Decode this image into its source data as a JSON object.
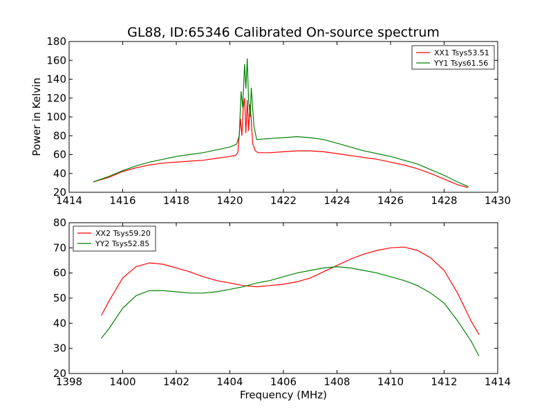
{
  "figure": {
    "title": "GL88, ID:65346 Calibrated On-source spectrum",
    "ylabel": "Power in Kelvin",
    "xlabel": "Frequency (MHz)"
  },
  "chart_data": [
    {
      "type": "line",
      "xlim": [
        1414,
        1430
      ],
      "ylim": [
        20,
        180
      ],
      "xticks": [
        "1414",
        "1416",
        "1418",
        "1420",
        "1422",
        "1424",
        "1426",
        "1428",
        "1430"
      ],
      "yticks": [
        "20",
        "40",
        "60",
        "80",
        "100",
        "120",
        "140",
        "160",
        "180"
      ],
      "ylabel": "Power in Kelvin",
      "legend_position": "top-right",
      "grid": false,
      "series": [
        {
          "name": "XX1 Tsys53.51",
          "color": "#ff0000",
          "points": [
            [
              1414.9,
              31
            ],
            [
              1415.5,
              36
            ],
            [
              1416,
              42
            ],
            [
              1416.5,
              46
            ],
            [
              1417,
              49
            ],
            [
              1417.5,
              51
            ],
            [
              1418,
              52
            ],
            [
              1418.5,
              53
            ],
            [
              1419,
              54
            ],
            [
              1419.5,
              56
            ],
            [
              1420,
              58
            ],
            [
              1420.2,
              59
            ],
            [
              1420.3,
              62
            ],
            [
              1420.4,
              98
            ],
            [
              1420.45,
              80
            ],
            [
              1420.5,
              110
            ],
            [
              1420.55,
              120
            ],
            [
              1420.6,
              83
            ],
            [
              1420.65,
              118
            ],
            [
              1420.7,
              85
            ],
            [
              1420.75,
              113
            ],
            [
              1420.8,
              97
            ],
            [
              1420.85,
              72
            ],
            [
              1420.95,
              64
            ],
            [
              1421.05,
              62
            ],
            [
              1421.5,
              62
            ],
            [
              1422,
              63
            ],
            [
              1422.5,
              64
            ],
            [
              1423,
              64
            ],
            [
              1423.5,
              63
            ],
            [
              1424,
              61
            ],
            [
              1424.5,
              59
            ],
            [
              1425,
              57
            ],
            [
              1425.5,
              55
            ],
            [
              1426,
              52
            ],
            [
              1426.5,
              49
            ],
            [
              1427,
              45
            ],
            [
              1427.5,
              40
            ],
            [
              1428,
              34
            ],
            [
              1428.5,
              28
            ],
            [
              1428.9,
              25
            ]
          ]
        },
        {
          "name": "YY1 Tsys61.56",
          "color": "#008000",
          "points": [
            [
              1414.9,
              31
            ],
            [
              1415.5,
              37
            ],
            [
              1416,
              43
            ],
            [
              1416.5,
              48
            ],
            [
              1417,
              52
            ],
            [
              1417.5,
              55
            ],
            [
              1418,
              58
            ],
            [
              1418.5,
              60
            ],
            [
              1419,
              62
            ],
            [
              1419.5,
              65
            ],
            [
              1420,
              68
            ],
            [
              1420.25,
              71
            ],
            [
              1420.35,
              80
            ],
            [
              1420.42,
              127
            ],
            [
              1420.48,
              110
            ],
            [
              1420.55,
              156
            ],
            [
              1420.6,
              130
            ],
            [
              1420.65,
              162
            ],
            [
              1420.7,
              118
            ],
            [
              1420.76,
              100
            ],
            [
              1420.8,
              131
            ],
            [
              1420.85,
              110
            ],
            [
              1420.9,
              90
            ],
            [
              1421,
              76
            ],
            [
              1421.5,
              77
            ],
            [
              1422,
              78
            ],
            [
              1422.5,
              79
            ],
            [
              1423,
              78
            ],
            [
              1423.5,
              76
            ],
            [
              1424,
              72
            ],
            [
              1424.5,
              68
            ],
            [
              1425,
              64
            ],
            [
              1425.5,
              61
            ],
            [
              1426,
              58
            ],
            [
              1426.5,
              54
            ],
            [
              1427,
              50
            ],
            [
              1427.5,
              44
            ],
            [
              1428,
              38
            ],
            [
              1428.5,
              31
            ],
            [
              1428.9,
              26
            ]
          ]
        }
      ]
    },
    {
      "type": "line",
      "xlim": [
        1398,
        1414
      ],
      "ylim": [
        20,
        80
      ],
      "xticks": [
        "1398",
        "1400",
        "1402",
        "1404",
        "1406",
        "1408",
        "1410",
        "1412",
        "1414"
      ],
      "yticks": [
        "20",
        "30",
        "40",
        "50",
        "60",
        "70",
        "80"
      ],
      "xlabel": "Frequency (MHz)",
      "legend_position": "top-left",
      "grid": false,
      "series": [
        {
          "name": "XX2 Tsys59.20",
          "color": "#ff0000",
          "points": [
            [
              1399.2,
              43
            ],
            [
              1399.5,
              49
            ],
            [
              1400,
              58
            ],
            [
              1400.5,
              62.5
            ],
            [
              1401,
              64
            ],
            [
              1401.5,
              63.5
            ],
            [
              1402,
              62
            ],
            [
              1402.5,
              60.5
            ],
            [
              1403,
              58.5
            ],
            [
              1403.5,
              57
            ],
            [
              1404,
              56
            ],
            [
              1404.5,
              55
            ],
            [
              1405,
              54.5
            ],
            [
              1405.5,
              55
            ],
            [
              1406,
              55.5
            ],
            [
              1406.5,
              56.5
            ],
            [
              1407,
              58
            ],
            [
              1407.5,
              60.5
            ],
            [
              1408,
              63
            ],
            [
              1408.5,
              65.5
            ],
            [
              1409,
              67.5
            ],
            [
              1409.5,
              69
            ],
            [
              1410,
              70
            ],
            [
              1410.5,
              70.3
            ],
            [
              1411,
              69
            ],
            [
              1411.5,
              66
            ],
            [
              1412,
              61
            ],
            [
              1412.5,
              52
            ],
            [
              1413,
              41
            ],
            [
              1413.3,
              35.5
            ]
          ]
        },
        {
          "name": "YY2 Tsys52.85",
          "color": "#008000",
          "points": [
            [
              1399.2,
              34
            ],
            [
              1399.5,
              38
            ],
            [
              1400,
              46
            ],
            [
              1400.5,
              51
            ],
            [
              1401,
              53
            ],
            [
              1401.5,
              53
            ],
            [
              1402,
              52.5
            ],
            [
              1402.5,
              52
            ],
            [
              1403,
              52
            ],
            [
              1403.5,
              52.5
            ],
            [
              1404,
              53.5
            ],
            [
              1404.5,
              54.5
            ],
            [
              1405,
              56
            ],
            [
              1405.5,
              57
            ],
            [
              1406,
              58.5
            ],
            [
              1406.5,
              60
            ],
            [
              1407,
              61
            ],
            [
              1407.5,
              62
            ],
            [
              1408,
              62.5
            ],
            [
              1408.5,
              62
            ],
            [
              1409,
              61
            ],
            [
              1409.5,
              60
            ],
            [
              1410,
              58.5
            ],
            [
              1410.5,
              57
            ],
            [
              1411,
              55
            ],
            [
              1411.5,
              52
            ],
            [
              1412,
              48
            ],
            [
              1412.5,
              41
            ],
            [
              1413,
              33
            ],
            [
              1413.3,
              27
            ]
          ]
        }
      ]
    }
  ]
}
